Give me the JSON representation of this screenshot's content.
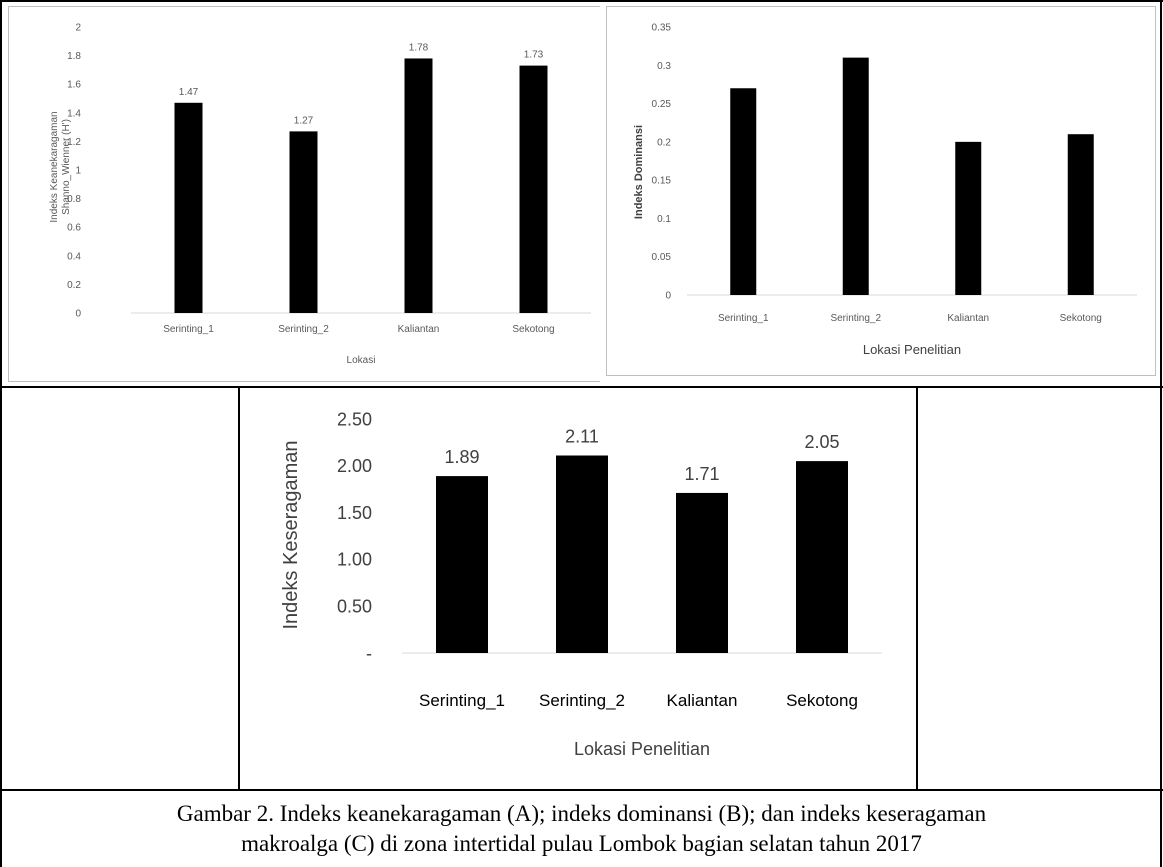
{
  "caption": {
    "line1": "Gambar 2. Indeks keanekaragaman (A); indeks dominansi (B); dan indeks keseragaman",
    "line2": "makroalga (C) di zona intertidal pulau Lombok bagian selatan tahun 2017"
  },
  "chart_data": [
    {
      "id": "A",
      "type": "bar",
      "title": "",
      "xlabel": "Lokasi",
      "ylabel_line1": "Indeks Keanekaragaman",
      "ylabel_line2": "Shanno_Wienner (H')",
      "categories": [
        "Serinting_1",
        "Serinting_2",
        "Kaliantan",
        "Sekotong"
      ],
      "values": [
        1.47,
        1.27,
        1.78,
        1.73
      ],
      "data_labels": [
        "1.47",
        "1.27",
        "1.78",
        "1.73"
      ],
      "yticks": [
        "0",
        "0.2",
        "0.4",
        "0.6",
        "0.8",
        "1",
        "1.2",
        "1.4",
        "1.6",
        "1.8",
        "2"
      ],
      "ylim": [
        0,
        2
      ],
      "bar_color": "#000000",
      "grid": false,
      "legend": "none"
    },
    {
      "id": "B",
      "type": "bar",
      "title": "",
      "xlabel": "Lokasi Penelitian",
      "ylabel": "Indeks Dominansi",
      "categories": [
        "Serinting_1",
        "Serinting_2",
        "Kaliantan",
        "Sekotong"
      ],
      "values": [
        0.27,
        0.31,
        0.2,
        0.21
      ],
      "yticks": [
        "0",
        "0.05",
        "0.1",
        "0.15",
        "0.2",
        "0.25",
        "0.3",
        "0.35"
      ],
      "ylim": [
        0,
        0.35
      ],
      "bar_color": "#000000",
      "grid": false,
      "legend": "none"
    },
    {
      "id": "C",
      "type": "bar",
      "title": "",
      "xlabel": "Lokasi Penelitian",
      "ylabel": "Indeks Keseragaman",
      "categories": [
        "Serinting_1",
        "Serinting_2",
        "Kaliantan",
        "Sekotong"
      ],
      "values": [
        1.89,
        2.11,
        1.71,
        2.05
      ],
      "data_labels": [
        "1.89",
        "2.11",
        "1.71",
        "2.05"
      ],
      "yticks": [
        "-",
        "0.50",
        "1.00",
        "1.50",
        "2.00",
        "2.50"
      ],
      "ylim": [
        0,
        2.5
      ],
      "bar_color": "#000000",
      "grid": false,
      "legend": "none"
    }
  ]
}
